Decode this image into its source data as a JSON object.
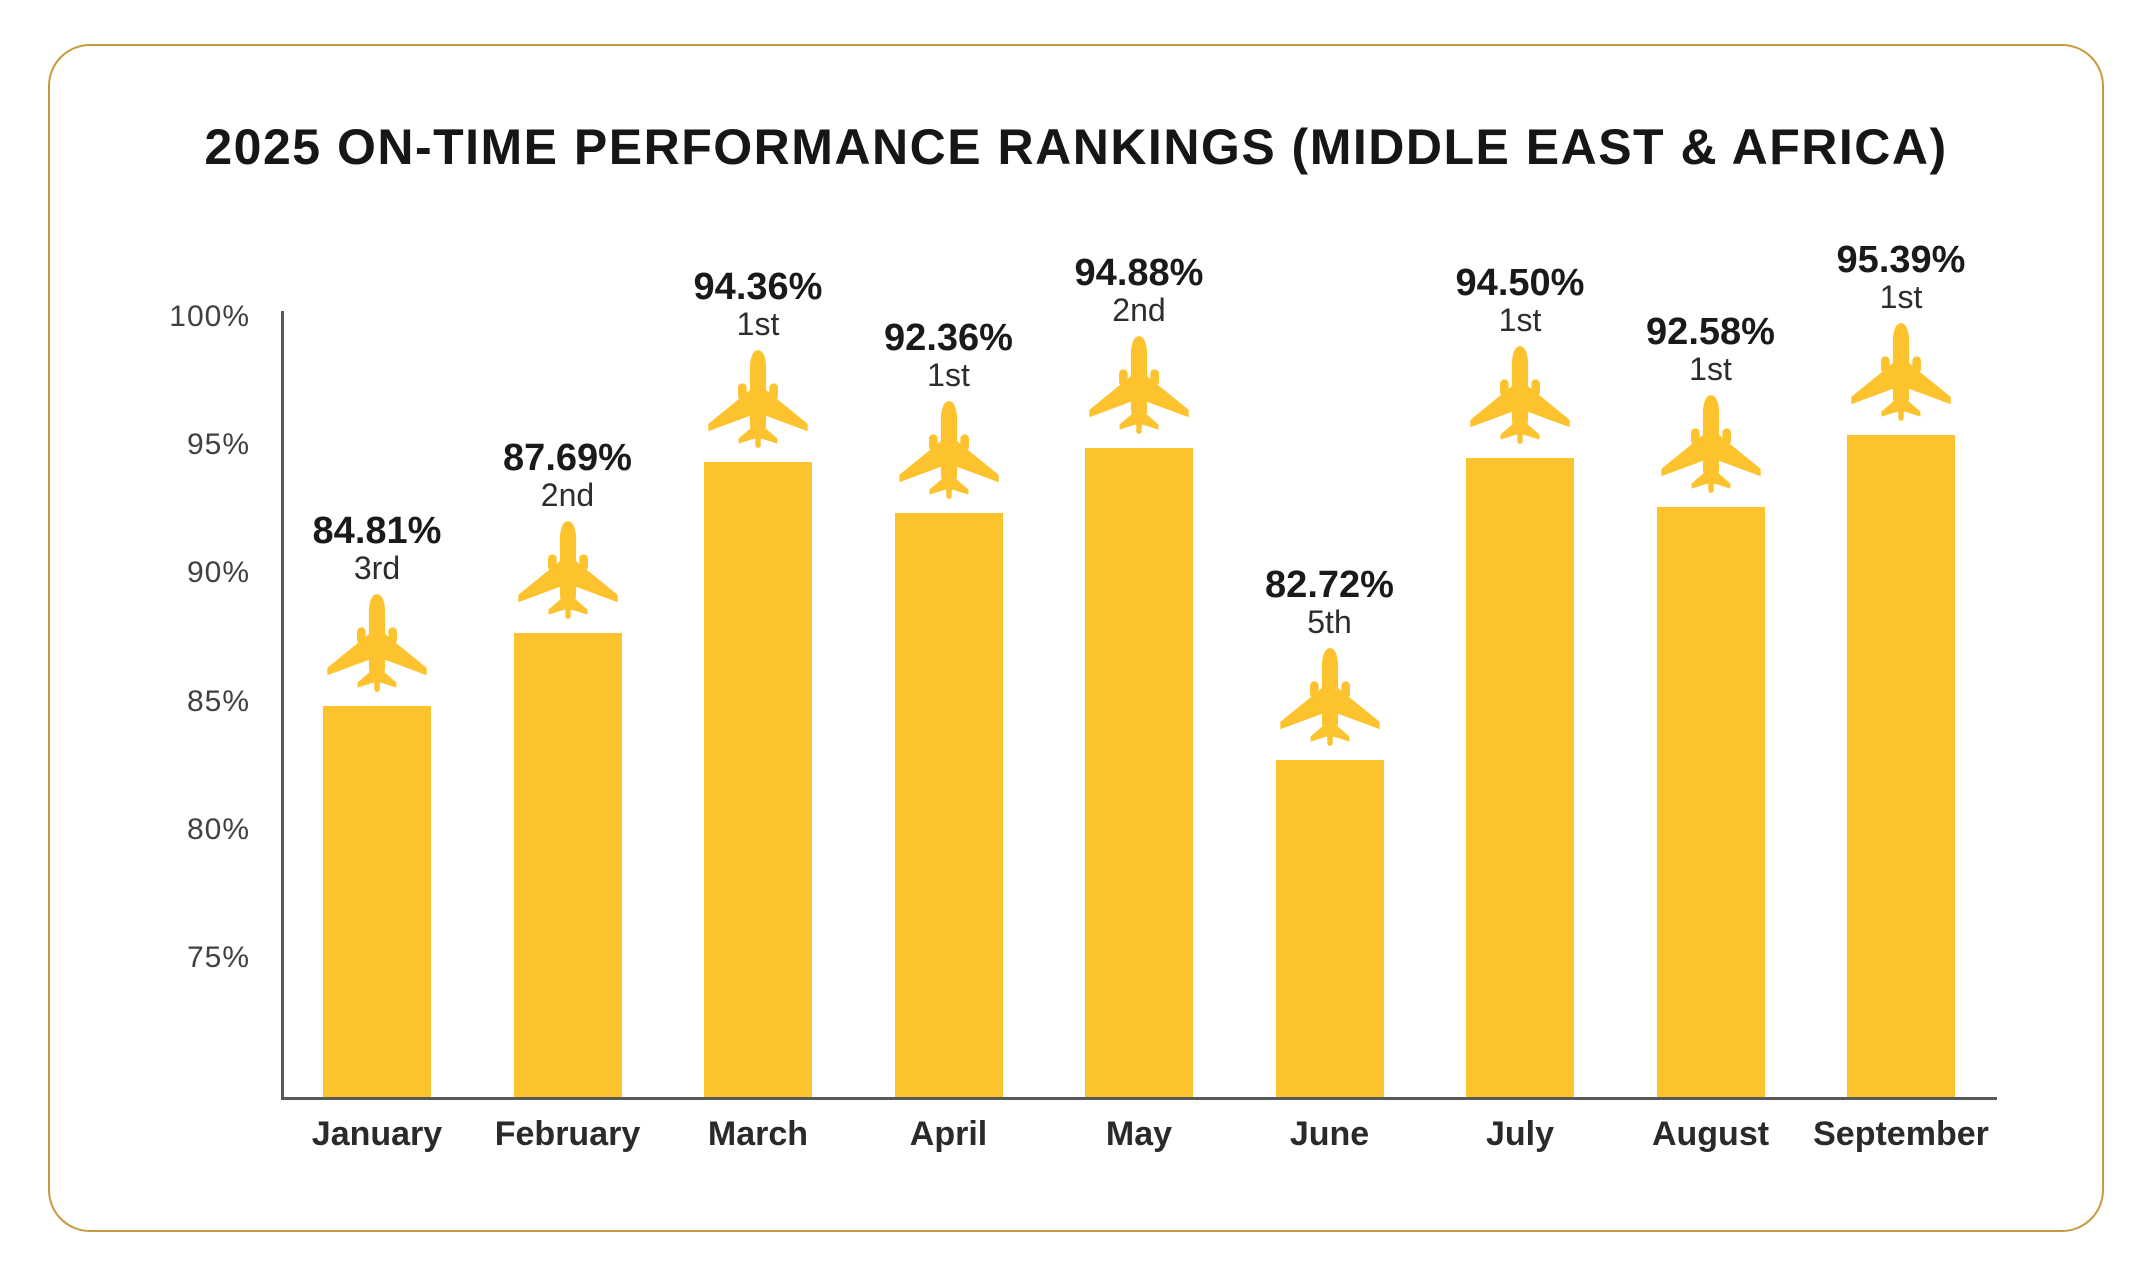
{
  "colors": {
    "bar": "#FCC32F",
    "frame_border": "#C49A3B",
    "axis": "#58595B",
    "title_text": "#161616",
    "tick_text": "#414042",
    "label_text": "#1A1A1A"
  },
  "chart_data": {
    "type": "bar",
    "title": "2025 ON-TIME PERFORMANCE RANKINGS (MIDDLE EAST & AFRICA)",
    "categories": [
      "January",
      "February",
      "March",
      "April",
      "May",
      "June",
      "July",
      "August",
      "September"
    ],
    "values": [
      84.81,
      87.69,
      94.36,
      92.36,
      94.88,
      82.72,
      94.5,
      92.58,
      95.39
    ],
    "value_labels": [
      "84.81%",
      "87.69%",
      "94.36%",
      "92.36%",
      "94.88%",
      "82.72%",
      "94.50%",
      "92.58%",
      "95.39%"
    ],
    "rankings": [
      "3rd",
      "2nd",
      "1st",
      "1st",
      "2nd",
      "5th",
      "1st",
      "1st",
      "1st"
    ],
    "y_ticks": [
      "100%",
      "95%",
      "90%",
      "85%",
      "80%",
      "75%"
    ],
    "y_tick_values": [
      100,
      95,
      90,
      85,
      80,
      75
    ],
    "ylim": [
      69.5,
      100
    ],
    "xlabel": "",
    "ylabel": "",
    "grid": false,
    "legend": "none",
    "marker_icon": "airplane-icon",
    "bar_color": "#FCC32F"
  }
}
